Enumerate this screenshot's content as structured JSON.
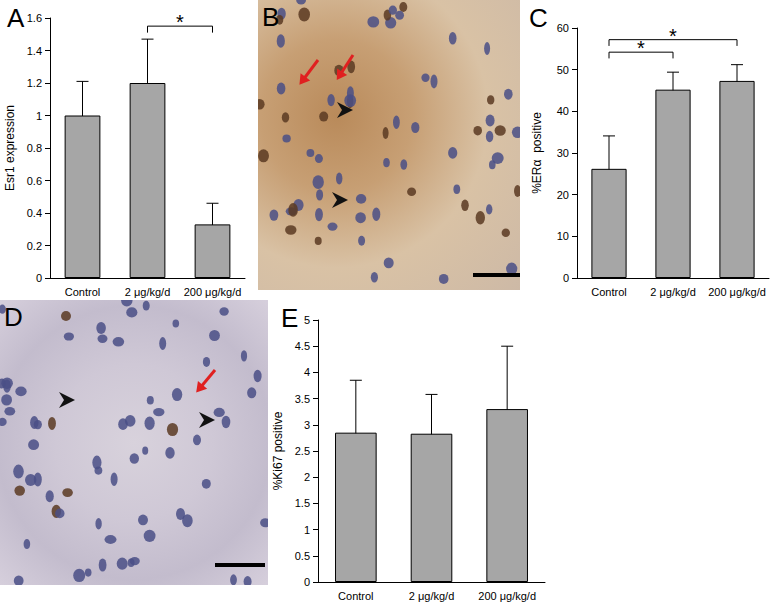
{
  "chart_data": [
    {
      "type": "bar",
      "title": "A",
      "y_label": "Esr1 expression",
      "categories": [
        "Control",
        "2 μg/kg/d",
        "200 μg/kg/d"
      ],
      "values": [
        1.0,
        1.2,
        0.33
      ],
      "errors": [
        0.21,
        0.27,
        0.13
      ],
      "color": "#a6a6a6",
      "ylim": [
        0,
        1.6
      ],
      "yticks": [
        0,
        0.2,
        0.4,
        0.6,
        0.8,
        1,
        1.2,
        1.4,
        1.6
      ],
      "grid": false,
      "annotations": [
        {
          "text": "*",
          "from": "2 μg/kg/d",
          "to": "200 μg/kg/d"
        }
      ]
    },
    {
      "type": "bar",
      "title": "C",
      "y_label": "%ERα  positive",
      "categories": [
        "Control",
        "2 μg/kg/d",
        "200 μg/kg/d"
      ],
      "values": [
        26.2,
        45.2,
        47.3
      ],
      "errors": [
        7.9,
        4.2,
        3.9
      ],
      "color": "#a6a6a6",
      "ylim": [
        0,
        60
      ],
      "yticks": [
        0,
        10,
        20,
        30,
        40,
        50,
        60
      ],
      "grid": false,
      "annotations": [
        {
          "text": "*",
          "from": "Control",
          "to": "2 μg/kg/d"
        },
        {
          "text": "*",
          "from": "Control",
          "to": "200 μg/kg/d"
        }
      ]
    },
    {
      "type": "bar",
      "title": "E",
      "y_label": "%Ki67 positive",
      "categories": [
        "Control",
        "2 μg/kg/d",
        "200 μg/kg/d"
      ],
      "values": [
        2.85,
        2.83,
        3.3
      ],
      "errors": [
        1.0,
        0.75,
        1.2
      ],
      "color": "#a6a6a6",
      "ylim": [
        0,
        5
      ],
      "yticks": [
        0,
        0.5,
        1,
        1.5,
        2,
        2.5,
        3,
        3.5,
        4,
        4.5,
        5
      ],
      "grid": false
    }
  ],
  "images": [
    {
      "label": "B"
    },
    {
      "label": "D"
    }
  ]
}
